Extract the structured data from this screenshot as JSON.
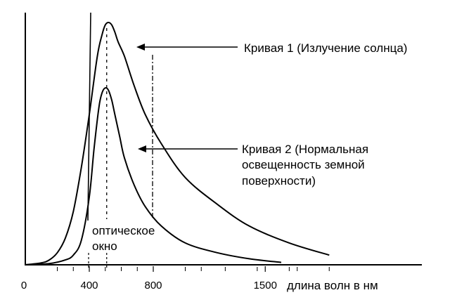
{
  "chart_data": {
    "type": "line",
    "xlabel": "длина волн в нм",
    "xlim": [
      0,
      2000
    ],
    "ylim": [
      0,
      1
    ],
    "x_ticks": [
      "0",
      "400",
      "800",
      "1500"
    ],
    "x_tick_values": [
      0,
      400,
      800,
      1500
    ],
    "minor_tick_values": [
      200,
      300,
      500,
      600,
      700,
      1000,
      1100,
      1250,
      1450,
      1650,
      1700,
      1900
    ],
    "optical_window": {
      "range": [
        400,
        800
      ],
      "peak_marker": 500,
      "label_lines": [
        "оптическое",
        "окно"
      ]
    },
    "series": [
      {
        "id": "curve1",
        "label_lines": [
          "Кривая 1 (Излучение солнца)"
        ],
        "x": [
          0,
          100,
          150,
          200,
          250,
          300,
          350,
          400,
          450,
          480,
          500,
          520,
          540,
          560,
          580,
          620,
          680,
          750,
          850,
          1000,
          1200,
          1400,
          1650,
          1900
        ],
        "y": [
          0,
          0.008,
          0.02,
          0.05,
          0.11,
          0.22,
          0.4,
          0.62,
          0.86,
          0.95,
          0.99,
          1.0,
          0.99,
          0.96,
          0.92,
          0.86,
          0.74,
          0.62,
          0.5,
          0.36,
          0.25,
          0.16,
          0.09,
          0.04
        ]
      },
      {
        "id": "curve2",
        "label_lines": [
          "Кривая 2 (Нормальная",
          "освещенность земной",
          "поверхности)"
        ],
        "x": [
          0,
          150,
          250,
          300,
          350,
          400,
          430,
          460,
          480,
          500,
          520,
          540,
          560,
          590,
          620,
          680,
          750,
          850,
          1000,
          1200,
          1400,
          1600
        ],
        "y": [
          0,
          0.005,
          0.02,
          0.04,
          0.1,
          0.28,
          0.48,
          0.65,
          0.71,
          0.73,
          0.72,
          0.68,
          0.62,
          0.53,
          0.44,
          0.33,
          0.24,
          0.16,
          0.09,
          0.05,
          0.025,
          0.01
        ]
      }
    ]
  }
}
